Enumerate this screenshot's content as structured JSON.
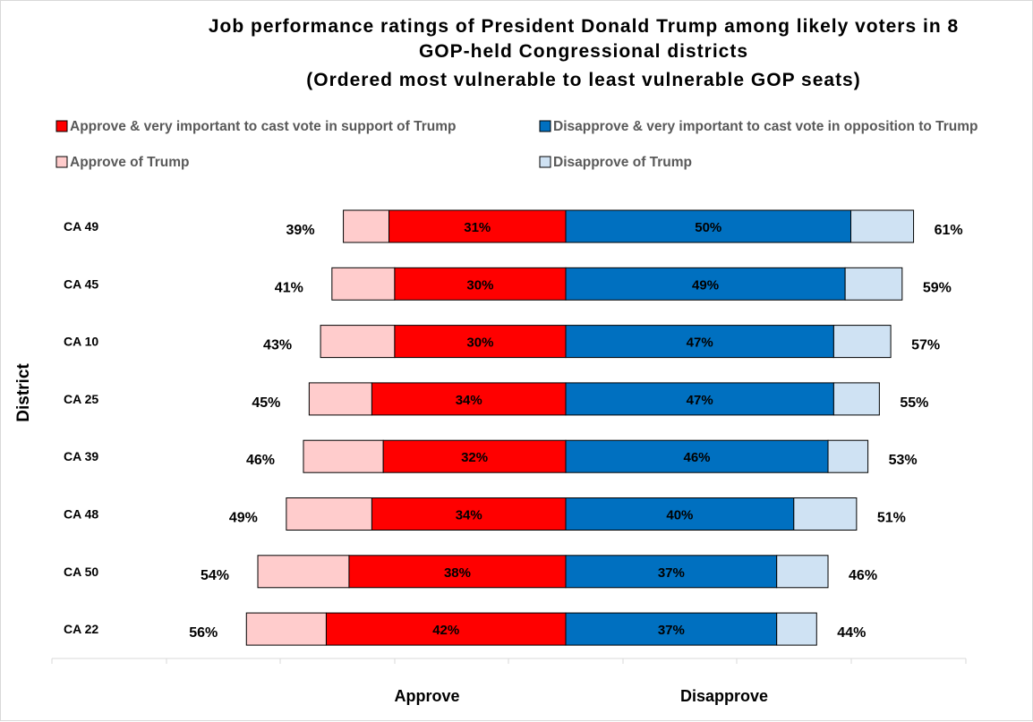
{
  "chart_data": {
    "type": "bar",
    "orientation": "horizontal-diverging",
    "title_lines": [
      "Job performance ratings of President Donald Trump among likely voters in 8",
      "GOP-held Congressional districts",
      "(Ordered most vulnerable to least vulnerable GOP seats)"
    ],
    "ylabel": "District",
    "approve_axis_label": "Approve",
    "disapprove_axis_label": "Disapprove",
    "legend": {
      "approve_strong": "Approve & very important to cast vote in support of Trump",
      "disapprove_strong": "Disapprove & very important to cast vote in opposition to Trump",
      "approve_total": "Approve of Trump",
      "disapprove_total": "Disapprove of Trump"
    },
    "categories": [
      "CA 49",
      "CA 45",
      "CA 10",
      "CA 25",
      "CA 39",
      "CA 48",
      "CA 50",
      "CA 22"
    ],
    "approve_strong": [
      31,
      30,
      30,
      34,
      32,
      34,
      38,
      42
    ],
    "approve_total": [
      39,
      41,
      43,
      45,
      46,
      49,
      54,
      56
    ],
    "disapprove_strong": [
      50,
      49,
      47,
      47,
      46,
      40,
      37,
      37
    ],
    "disapprove_total": [
      61,
      59,
      57,
      55,
      53,
      51,
      46,
      44
    ],
    "colors": {
      "approve_strong": "#ff0000",
      "approve_total": "#ffcccc",
      "disapprove_strong": "#0070c0",
      "disapprove_total": "#cfe2f3"
    }
  }
}
